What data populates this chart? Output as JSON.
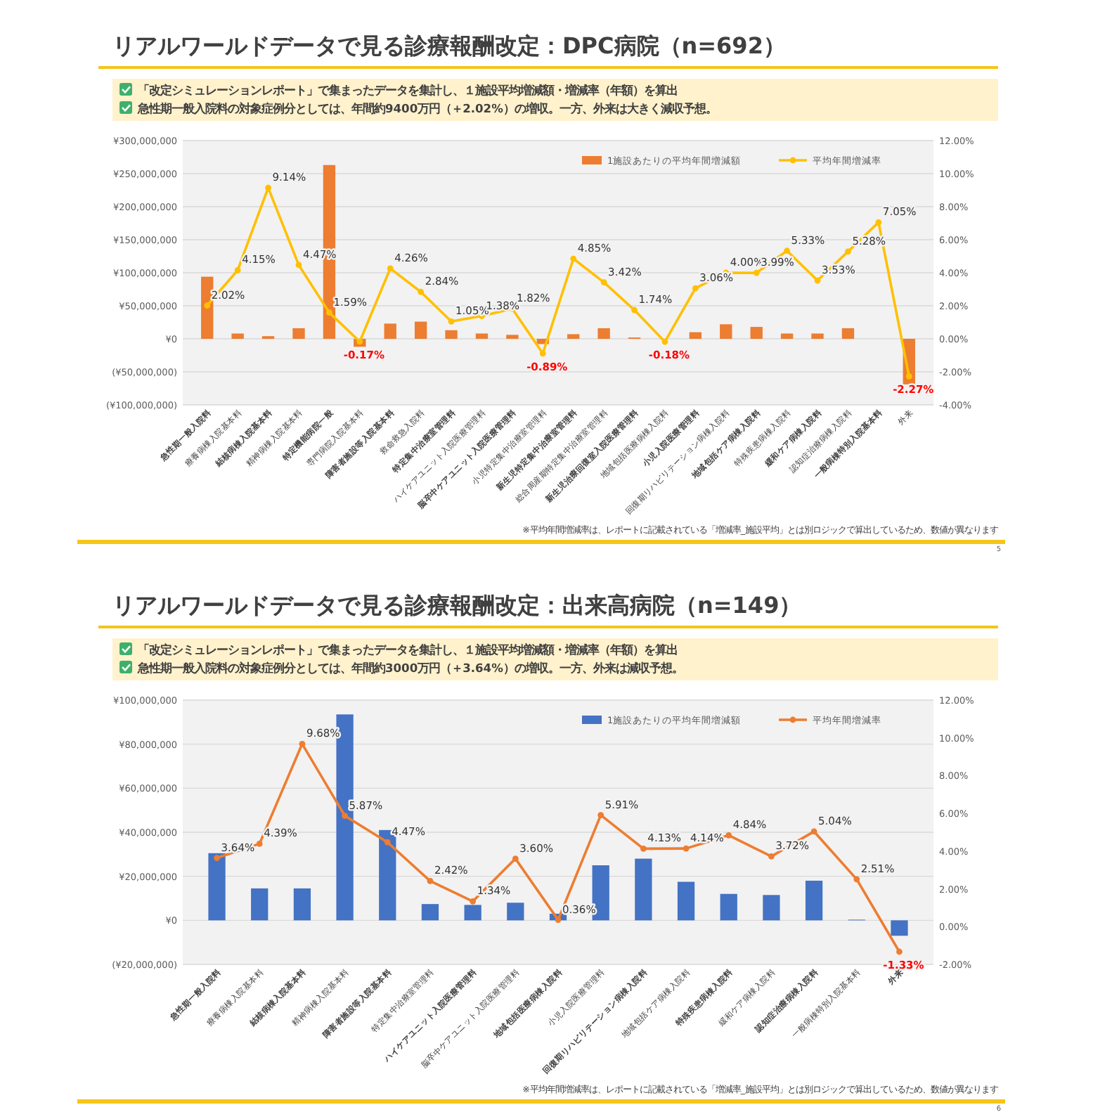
{
  "chart_data": [
    {
      "type": "bar",
      "title": "リアルワールドデータで見る診療報酬改定：DPC病院（n=692）",
      "subtitle": [
        "「改定シミュレーションレポート」で集まったデータを集計し、１施設平均増減額・増減率（年額）を算出",
        "急性期一般入院料の対象症例分としては、年間約9400万円（＋2.02%）の増収。一方、外来は大きく減収予想。"
      ],
      "categories": [
        "急性期一般入院料",
        "療養病棟入院基本料",
        "結核病棟入院基本料",
        "精神病棟入院基本料",
        "特定機能病院一般",
        "専門病院入院基本料",
        "障害者施設等入院基本料",
        "救命救急入院料",
        "特定集中治療室管理料",
        "ハイケアユニット入院医療管理料",
        "脳卒中ケアユニット入院医療管理料",
        "小児特定集中治療室管理料",
        "新生児特定集中治療室管理料",
        "総合周産期特定集中治療室管理料",
        "新生児治療回復室入院医療管理料",
        "地域包括医療病棟入院料",
        "小児入院医療管理料",
        "回復期リハビリテーション病棟入院料",
        "地域包括ケア病棟入院料",
        "特殊疾患病棟入院料",
        "緩和ケア病棟入院料",
        "認知症治療病棟入院料",
        "一般病棟特別入院基本料",
        "外来"
      ],
      "series": [
        {
          "name": "1施設あたりの平均年間増減額",
          "color": "#ed7d31",
          "values": [
            94000000,
            8000000,
            4000000,
            16000000,
            263000000,
            -12000000,
            23000000,
            26000000,
            13000000,
            8000000,
            6000000,
            -8000000,
            7000000,
            16000000,
            2000000,
            0,
            10000000,
            22000000,
            18000000,
            8000000,
            8000000,
            16000000,
            0,
            -69000000
          ]
        },
        {
          "name": "平均年間増減率",
          "type": "line",
          "axis": "y2",
          "color": "#ffc000",
          "values": [
            2.02,
            4.15,
            9.14,
            4.47,
            1.59,
            -0.17,
            4.26,
            2.84,
            1.05,
            1.38,
            1.82,
            -0.89,
            4.85,
            3.42,
            1.74,
            -0.18,
            3.06,
            4.0,
            3.99,
            5.33,
            3.53,
            5.28,
            7.05,
            -2.27
          ],
          "value_labels": [
            "2.02%",
            "4.15%",
            "9.14%",
            "4.47%",
            "1.59%",
            "-0.17%",
            "4.26%",
            "2.84%",
            "1.05%",
            "1.38%",
            "1.82%",
            "-0.89%",
            "4.85%",
            "3.42%",
            "1.74%",
            "-0.18%",
            "3.06%",
            "4.00%",
            "3.99%",
            "5.33%",
            "3.53%",
            "5.28%",
            "7.05%",
            "-2.27%"
          ]
        }
      ],
      "ylim": [
        -100000000,
        300000000
      ],
      "yticks": [
        {
          "value": -100000000,
          "label": "(¥100,000,000)"
        },
        {
          "value": -50000000,
          "label": "(¥50,000,000)"
        },
        {
          "value": 0,
          "label": "¥0"
        },
        {
          "value": 50000000,
          "label": "¥50,000,000"
        },
        {
          "value": 100000000,
          "label": "¥100,000,000"
        },
        {
          "value": 150000000,
          "label": "¥150,000,000"
        },
        {
          "value": 200000000,
          "label": "¥200,000,000"
        },
        {
          "value": 250000000,
          "label": "¥250,000,000"
        },
        {
          "value": 300000000,
          "label": "¥300,000,000"
        }
      ],
      "y2lim": [
        -4,
        12
      ],
      "y2ticks": [
        {
          "value": -4,
          "label": "-4.00%"
        },
        {
          "value": -2,
          "label": "-2.00%"
        },
        {
          "value": 0,
          "label": "0.00%"
        },
        {
          "value": 2,
          "label": "2.00%"
        },
        {
          "value": 4,
          "label": "4.00%"
        },
        {
          "value": 6,
          "label": "6.00%"
        },
        {
          "value": 8,
          "label": "8.00%"
        },
        {
          "value": 10,
          "label": "10.00%"
        },
        {
          "value": 12,
          "label": "12.00%"
        }
      ],
      "grid": "y",
      "legend": "top right",
      "marker": "circle",
      "annotations": [
        "※平均年間増減率は、レポートに記載されている「増減率_施設平均」とは別ロジックで算出しているため、数値が異なります",
        "5"
      ]
    },
    {
      "type": "bar",
      "title": "リアルワールドデータで見る診療報酬改定：出来高病院（n=149）",
      "subtitle": [
        "「改定シミュレーションレポート」で集まったデータを集計し、１施設平均増減額・増減率（年額）を算出",
        "急性期一般入院料の対象症例分としては、年間約3000万円（＋3.64%）の増収。一方、外来は減収予想。"
      ],
      "categories": [
        "急性期一般入院料",
        "療養病棟入院基本料",
        "結核病棟入院基本料",
        "精神病棟入院基本料",
        "障害者施設等入院基本料",
        "特定集中治療室管理料",
        "ハイケアユニット入院医療管理料",
        "脳卒中ケアユニット入院医療管理料",
        "地域包括医療病棟入院料",
        "小児入院医療管理料",
        "回復期リハビリテーション病棟入院料",
        "地域包括ケア病棟入院料",
        "特殊疾患病棟入院料",
        "緩和ケア病棟入院料",
        "認知症治療病棟入院料",
        "一般病棟特別入院基本料",
        "外来"
      ],
      "series": [
        {
          "name": "1施設あたりの平均年間増減額",
          "color": "#4472c4",
          "values": [
            30500000,
            14500000,
            14500000,
            93500000,
            41000000,
            7400000,
            7000000,
            8000000,
            3000000,
            25000000,
            28000000,
            17500000,
            12000000,
            11500000,
            18000000,
            300000,
            -7000000
          ]
        },
        {
          "name": "平均年間増減率",
          "type": "line",
          "axis": "y2",
          "color": "#ed7d31",
          "values": [
            3.64,
            4.39,
            9.68,
            5.87,
            4.47,
            2.42,
            1.34,
            3.6,
            0.36,
            5.91,
            4.13,
            4.14,
            4.84,
            3.72,
            5.04,
            2.51,
            -1.33
          ],
          "value_labels": [
            "3.64%",
            "4.39%",
            "9.68%",
            "5.87%",
            "4.47%",
            "2.42%",
            "1.34%",
            "3.60%",
            "0.36%",
            "5.91%",
            "4.13%",
            "4.14%",
            "4.84%",
            "3.72%",
            "5.04%",
            "2.51%",
            "-1.33%"
          ]
        }
      ],
      "ylim": [
        -20000000,
        100000000
      ],
      "yticks": [
        {
          "value": -20000000,
          "label": "(¥20,000,000)"
        },
        {
          "value": 0,
          "label": "¥0"
        },
        {
          "value": 20000000,
          "label": "¥20,000,000"
        },
        {
          "value": 40000000,
          "label": "¥40,000,000"
        },
        {
          "value": 60000000,
          "label": "¥60,000,000"
        },
        {
          "value": 80000000,
          "label": "¥80,000,000"
        },
        {
          "value": 100000000,
          "label": "¥100,000,000"
        }
      ],
      "y2lim": [
        -2,
        12
      ],
      "y2ticks": [
        {
          "value": -2,
          "label": "-2.00%"
        },
        {
          "value": 0,
          "label": "0.00%"
        },
        {
          "value": 2,
          "label": "2.00%"
        },
        {
          "value": 4,
          "label": "4.00%"
        },
        {
          "value": 6,
          "label": "6.00%"
        },
        {
          "value": 8,
          "label": "8.00%"
        },
        {
          "value": 10,
          "label": "10.00%"
        },
        {
          "value": 12,
          "label": "12.00%"
        }
      ],
      "grid": "y",
      "legend": "top right",
      "marker": "circle",
      "annotations": [
        "※平均年間増減率は、レポートに記載されている「増減率_施設平均」とは別ロジックで算出しているため、数値が異なります",
        "6"
      ]
    }
  ]
}
